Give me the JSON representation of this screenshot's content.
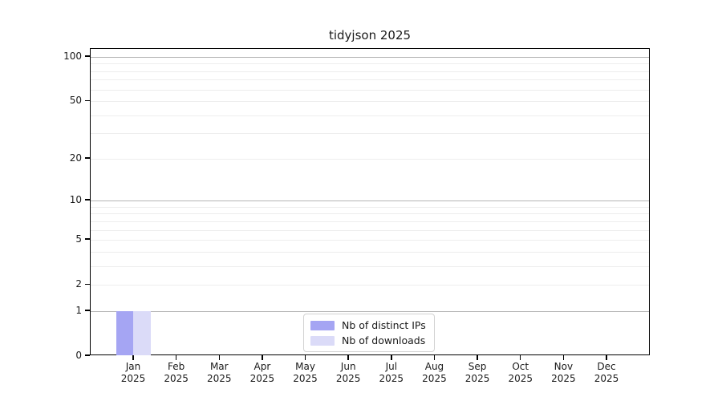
{
  "chart_data": {
    "type": "bar",
    "title": "tidyjson 2025",
    "categories": [
      "Jan",
      "Feb",
      "Mar",
      "Apr",
      "May",
      "Jun",
      "Jul",
      "Aug",
      "Sep",
      "Oct",
      "Nov",
      "Dec"
    ],
    "category_year": "2025",
    "series": [
      {
        "name": "Nb of distinct IPs",
        "color": "#a5a5f3",
        "values": [
          1,
          0,
          0,
          0,
          0,
          0,
          0,
          0,
          0,
          0,
          0,
          0
        ]
      },
      {
        "name": "Nb of downloads",
        "color": "#dbdbf8",
        "values": [
          1,
          0,
          0,
          0,
          0,
          0,
          0,
          0,
          0,
          0,
          0,
          0
        ]
      }
    ],
    "xlabel": "",
    "ylabel": "",
    "y_scale": "log1p",
    "ylim": [
      0,
      100
    ],
    "y_ticks": [
      0,
      1,
      2,
      5,
      10,
      20,
      50,
      100
    ],
    "grid": true,
    "grid_emphasis_values": [
      1,
      10,
      100
    ],
    "grid_minor_values": [
      2,
      3,
      4,
      5,
      6,
      7,
      8,
      9,
      20,
      30,
      40,
      50,
      60,
      70,
      80,
      90
    ],
    "legend_position": "lower center",
    "colors": {
      "axis": "#000000",
      "text": "#1a1a1a",
      "grid_major": "#b5b5b5",
      "grid_minor": "#ededed",
      "legend_border": "#d2d2d2",
      "legend_background": "#ffffff"
    }
  }
}
